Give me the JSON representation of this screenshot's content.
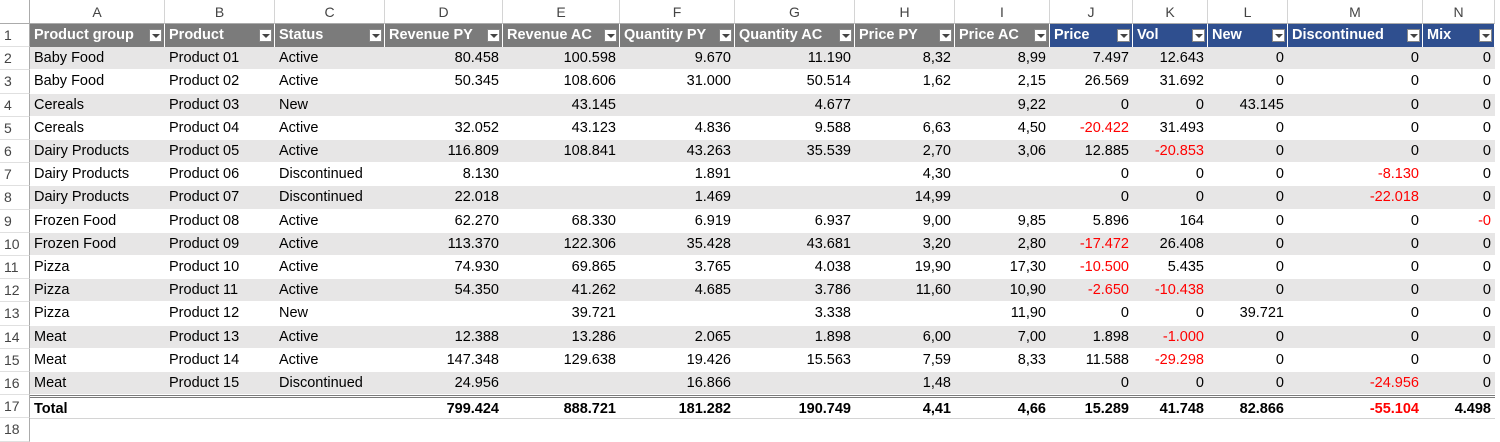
{
  "column_letters": [
    "A",
    "B",
    "C",
    "D",
    "E",
    "F",
    "G",
    "H",
    "I",
    "J",
    "K",
    "L",
    "M",
    "N"
  ],
  "row_numbers": [
    "1",
    "2",
    "3",
    "4",
    "5",
    "6",
    "7",
    "8",
    "9",
    "10",
    "11",
    "12",
    "13",
    "14",
    "15",
    "16",
    "17",
    "18"
  ],
  "table": {
    "header": [
      "Product group",
      "Product",
      "Status",
      "Revenue PY",
      "Revenue AC",
      "Quantity PY",
      "Quantity AC",
      "Price PY",
      "Price AC",
      "Price",
      "Vol",
      "New",
      "Discontinued",
      "Mix"
    ],
    "rows": [
      [
        "Baby Food",
        "Product 01",
        "Active",
        "80.458",
        "100.598",
        "9.670",
        "11.190",
        "8,32",
        "8,99",
        "7.497",
        "12.643",
        "0",
        "0",
        "0"
      ],
      [
        "Baby Food",
        "Product 02",
        "Active",
        "50.345",
        "108.606",
        "31.000",
        "50.514",
        "1,62",
        "2,15",
        "26.569",
        "31.692",
        "0",
        "0",
        "0"
      ],
      [
        "Cereals",
        "Product 03",
        "New",
        null,
        "43.145",
        null,
        "4.677",
        null,
        "9,22",
        "0",
        "0",
        "43.145",
        "0",
        "0"
      ],
      [
        "Cereals",
        "Product 04",
        "Active",
        "32.052",
        "43.123",
        "4.836",
        "9.588",
        "6,63",
        "4,50",
        "-20.422",
        "31.493",
        "0",
        "0",
        "0"
      ],
      [
        "Dairy Products",
        "Product 05",
        "Active",
        "116.809",
        "108.841",
        "43.263",
        "35.539",
        "2,70",
        "3,06",
        "12.885",
        "-20.853",
        "0",
        "0",
        "0"
      ],
      [
        "Dairy Products",
        "Product 06",
        "Discontinued",
        "8.130",
        null,
        "1.891",
        null,
        "4,30",
        null,
        "0",
        "0",
        "0",
        "-8.130",
        "0"
      ],
      [
        "Dairy Products",
        "Product 07",
        "Discontinued",
        "22.018",
        null,
        "1.469",
        null,
        "14,99",
        null,
        "0",
        "0",
        "0",
        "-22.018",
        "0"
      ],
      [
        "Frozen Food",
        "Product 08",
        "Active",
        "62.270",
        "68.330",
        "6.919",
        "6.937",
        "9,00",
        "9,85",
        "5.896",
        "164",
        "0",
        "0",
        "-0"
      ],
      [
        "Frozen Food",
        "Product 09",
        "Active",
        "113.370",
        "122.306",
        "35.428",
        "43.681",
        "3,20",
        "2,80",
        "-17.472",
        "26.408",
        "0",
        "0",
        "0"
      ],
      [
        "Pizza",
        "Product 10",
        "Active",
        "74.930",
        "69.865",
        "3.765",
        "4.038",
        "19,90",
        "17,30",
        "-10.500",
        "5.435",
        "0",
        "0",
        "0"
      ],
      [
        "Pizza",
        "Product 11",
        "Active",
        "54.350",
        "41.262",
        "4.685",
        "3.786",
        "11,60",
        "10,90",
        "-2.650",
        "-10.438",
        "0",
        "0",
        "0"
      ],
      [
        "Pizza",
        "Product 12",
        "New",
        null,
        "39.721",
        null,
        "3.338",
        null,
        "11,90",
        "0",
        "0",
        "39.721",
        "0",
        "0"
      ],
      [
        "Meat",
        "Product 13",
        "Active",
        "12.388",
        "13.286",
        "2.065",
        "1.898",
        "6,00",
        "7,00",
        "1.898",
        "-1.000",
        "0",
        "0",
        "0"
      ],
      [
        "Meat",
        "Product 14",
        "Active",
        "147.348",
        "129.638",
        "19.426",
        "15.563",
        "7,59",
        "8,33",
        "11.588",
        "-29.298",
        "0",
        "0",
        "0"
      ],
      [
        "Meat",
        "Product 15",
        "Discontinued",
        "24.956",
        null,
        "16.866",
        null,
        "1,48",
        null,
        "0",
        "0",
        "0",
        "-24.956",
        "0"
      ]
    ],
    "total": [
      "Total",
      null,
      null,
      "799.424",
      "888.721",
      "181.282",
      "190.749",
      "4,41",
      "4,66",
      "15.289",
      "41.748",
      "82.866",
      "-55.104",
      "4.498"
    ]
  }
}
